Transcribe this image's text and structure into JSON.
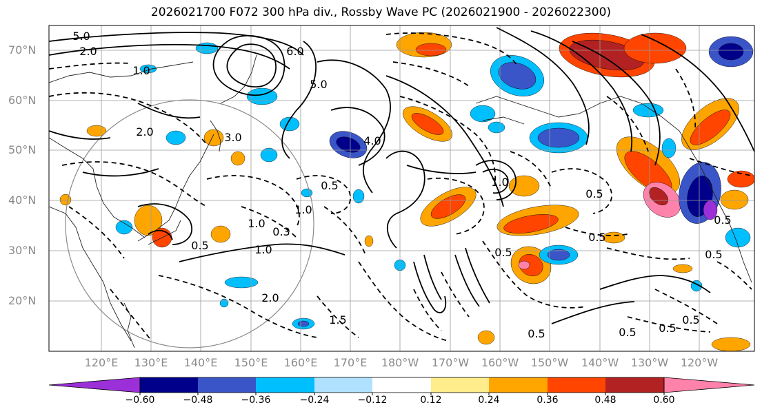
{
  "title": "2026021700 F072 300 hPa div., Rossby Wave PC (2026021900 - 2026022300)",
  "lat_labels": [
    "70°N",
    "60°N",
    "50°N",
    "40°N",
    "30°N",
    "20°N"
  ],
  "lon_labels": [
    "120°E",
    "130°E",
    "140°E",
    "150°E",
    "160°E",
    "170°E",
    "180°W",
    "170°W",
    "160°W",
    "150°W",
    "140°W",
    "130°W",
    "120°W"
  ],
  "colorbar": {
    "ticks": [
      "−0.60",
      "−0.48",
      "−0.36",
      "−0.24",
      "−0.12",
      "0.12",
      "0.24",
      "0.36",
      "0.48",
      "0.60"
    ],
    "colors": [
      "#9b30d9",
      "#00008b",
      "#3a55c8",
      "#00bfff",
      "#b0e2ff",
      "#ffffff",
      "#ffec8b",
      "#ffa500",
      "#ff4500",
      "#b22222",
      "#ff82ab"
    ]
  },
  "contour_labels": [
    "5.0",
    "2.0",
    "6.0",
    "5.0",
    "1.0",
    "3.0",
    "2.0",
    "4.0",
    "1.0",
    "0.5",
    "0.5",
    "1.0",
    "0.3",
    "1.0",
    "2.0",
    "1.5",
    "0.5",
    "0.5",
    "0.5",
    "0.5",
    "0.5",
    "1.0",
    "0.5",
    "0.5",
    "0.5",
    "0.5"
  ]
}
